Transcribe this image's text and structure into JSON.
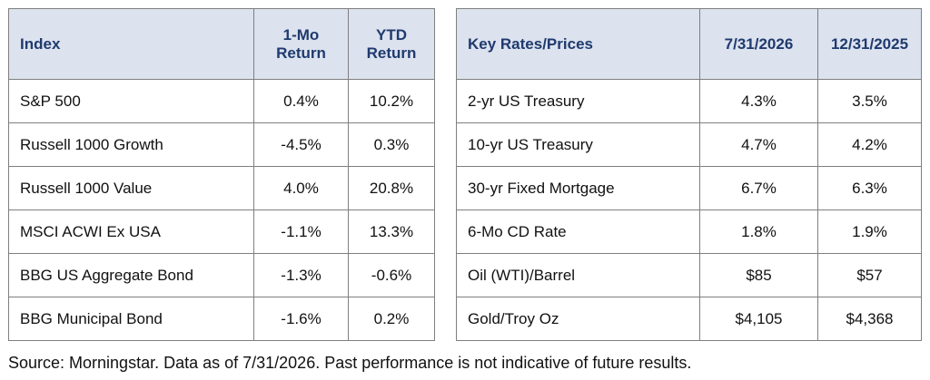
{
  "index_table": {
    "headers": {
      "col1": "Index",
      "col2_line1": "1-Mo",
      "col2_line2": "Return",
      "col3_line1": "YTD",
      "col3_line2": "Return"
    },
    "rows": [
      {
        "name": "S&P 500",
        "one_mo": "0.4%",
        "ytd": "10.2%"
      },
      {
        "name": "Russell 1000 Growth",
        "one_mo": "-4.5%",
        "ytd": "0.3%"
      },
      {
        "name": "Russell 1000 Value",
        "one_mo": "4.0%",
        "ytd": "20.8%"
      },
      {
        "name": "MSCI ACWI Ex USA",
        "one_mo": "-1.1%",
        "ytd": "13.3%"
      },
      {
        "name": "BBG US Aggregate Bond",
        "one_mo": "-1.3%",
        "ytd": "-0.6%"
      },
      {
        "name": "BBG Municipal Bond",
        "one_mo": "-1.6%",
        "ytd": "0.2%"
      }
    ]
  },
  "rates_table": {
    "headers": {
      "col1": "Key Rates/Prices",
      "col2": "7/31/2026",
      "col3": "12/31/2025"
    },
    "rows": [
      {
        "name": "2-yr US Treasury",
        "current": "4.3%",
        "prior": "3.5%"
      },
      {
        "name": "10-yr US Treasury",
        "current": "4.7%",
        "prior": "4.2%"
      },
      {
        "name": "30-yr Fixed Mortgage",
        "current": "6.7%",
        "prior": "6.3%"
      },
      {
        "name": "6-Mo CD Rate",
        "current": "1.8%",
        "prior": "1.9%"
      },
      {
        "name": "Oil (WTI)/Barrel",
        "current": "$85",
        "prior": "$57"
      },
      {
        "name": "Gold/Troy Oz",
        "current": "$4,105",
        "prior": "$4,368"
      }
    ]
  },
  "source_note": "Source: Morningstar. Data as of 7/31/2026. Past performance is not indicative of future results."
}
